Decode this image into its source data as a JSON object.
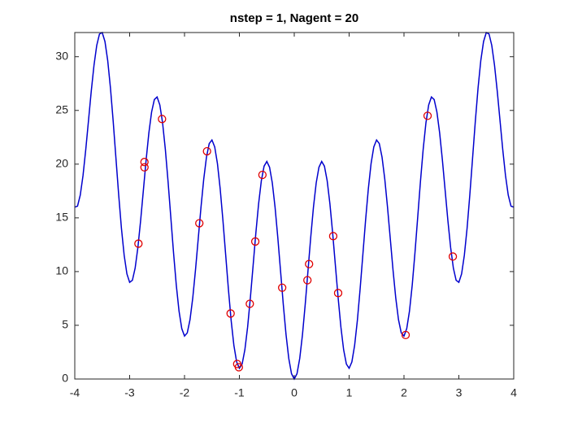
{
  "chart_data": {
    "type": "line",
    "title": "nstep = 1, Nagent = 20",
    "xlim": [
      -4,
      4
    ],
    "ylim": [
      0,
      32.25
    ],
    "xticks": [
      -4,
      -3,
      -2,
      -1,
      0,
      1,
      2,
      3,
      4
    ],
    "yticks": [
      0,
      5,
      10,
      15,
      20,
      25,
      30
    ],
    "series": [
      {
        "type": "line",
        "color": "#0000cd",
        "x": [
          -4,
          -3.95,
          -3.9,
          -3.85,
          -3.8,
          -3.75,
          -3.7,
          -3.65,
          -3.6,
          -3.55,
          -3.5,
          -3.45,
          -3.4,
          -3.35,
          -3.3,
          -3.25,
          -3.2,
          -3.15,
          -3.1,
          -3.05,
          -3,
          -2.95,
          -2.9,
          -2.85,
          -2.8,
          -2.75,
          -2.7,
          -2.65,
          -2.6,
          -2.55,
          -2.5,
          -2.45,
          -2.4,
          -2.35,
          -2.3,
          -2.25,
          -2.2,
          -2.15,
          -2.1,
          -2.05,
          -2,
          -1.95,
          -1.9,
          -1.85,
          -1.8,
          -1.75,
          -1.7,
          -1.65,
          -1.6,
          -1.55,
          -1.5,
          -1.45,
          -1.4,
          -1.35,
          -1.3,
          -1.25,
          -1.2,
          -1.15,
          -1.1,
          -1.05,
          -1,
          -0.95,
          -0.9,
          -0.85,
          -0.8,
          -0.75,
          -0.7,
          -0.65,
          -0.6,
          -0.55,
          -0.5,
          -0.45,
          -0.4,
          -0.35,
          -0.3,
          -0.25,
          -0.2,
          -0.15,
          -0.1,
          -0.05,
          0,
          0.05,
          0.1,
          0.15,
          0.2,
          0.25,
          0.3,
          0.35,
          0.4,
          0.45,
          0.5,
          0.55,
          0.6,
          0.65,
          0.7,
          0.75,
          0.8,
          0.85,
          0.9,
          0.95,
          1,
          1.05,
          1.1,
          1.15,
          1.2,
          1.25,
          1.3,
          1.35,
          1.4,
          1.45,
          1.5,
          1.55,
          1.6,
          1.65,
          1.7,
          1.75,
          1.8,
          1.85,
          1.9,
          1.95,
          2,
          2.05,
          2.1,
          2.15,
          2.2,
          2.25,
          2.3,
          2.35,
          2.4,
          2.45,
          2.5,
          2.55,
          2.6,
          2.65,
          2.7,
          2.75,
          2.8,
          2.85,
          2.9,
          2.95,
          3,
          3.05,
          3.1,
          3.15,
          3.2,
          3.25,
          3.3,
          3.35,
          3.4,
          3.45,
          3.5,
          3.55,
          3.6,
          3.65,
          3.7,
          3.75,
          3.8,
          3.85,
          3.9,
          3.95,
          4
        ],
        "values": [
          16,
          16.09,
          17.12,
          18.94,
          21.35,
          24.06,
          26.78,
          29.2,
          31.05,
          32.11,
          32.25,
          31.41,
          29.65,
          27.1,
          23.98,
          20.56,
          17.15,
          14.04,
          11.52,
          9.79,
          9,
          9.19,
          10.32,
          12.24,
          14.75,
          17.56,
          20.38,
          22.9,
          24.85,
          26.01,
          26.25,
          25.51,
          23.85,
          21.4,
          18.38,
          15.06,
          11.75,
          8.74,
          6.32,
          4.69,
          4,
          4.29,
          5.52,
          7.54,
          10.15,
          13.06,
          15.98,
          18.6,
          20.65,
          21.91,
          22.25,
          21.61,
          20.05,
          17.7,
          14.78,
          11.56,
          8.35,
          5.44,
          3.12,
          1.59,
          1,
          1.39,
          2.72,
          4.84,
          7.55,
          10.56,
          13.58,
          16.3,
          18.45,
          19.81,
          20.25,
          19.71,
          18.25,
          16,
          13.18,
          10.06,
          6.95,
          4.14,
          1.92,
          0.49,
          0,
          0.49,
          1.92,
          4.14,
          6.95,
          10.06,
          13.18,
          16,
          18.25,
          19.71,
          20.25,
          19.81,
          18.45,
          16.3,
          13.58,
          10.56,
          7.55,
          4.84,
          2.72,
          1.39,
          1,
          1.59,
          3.12,
          5.44,
          8.35,
          11.56,
          14.78,
          17.7,
          20.05,
          21.61,
          22.25,
          21.91,
          20.65,
          18.6,
          15.98,
          13.06,
          10.15,
          7.54,
          5.52,
          4.29,
          4,
          4.69,
          6.32,
          8.74,
          11.75,
          15.06,
          18.38,
          21.4,
          23.85,
          25.51,
          26.25,
          26.01,
          24.85,
          22.9,
          20.38,
          17.56,
          14.75,
          12.24,
          10.32,
          9.19,
          9,
          9.79,
          11.52,
          14.04,
          17.15,
          20.56,
          23.98,
          27.1,
          29.65,
          31.41,
          32.25,
          32.11,
          31.05,
          29.2,
          26.78,
          24.06,
          21.35,
          18.94,
          17.12,
          16.09,
          16
        ]
      },
      {
        "type": "scatter",
        "color": "#e00000",
        "x": [
          -2.84,
          -2.73,
          -2.73,
          -2.41,
          -1.73,
          -1.59,
          -1.16,
          -1.04,
          -1.01,
          -0.81,
          -0.71,
          -0.58,
          -0.22,
          0.24,
          0.27,
          0.71,
          0.8,
          2.03,
          2.43,
          2.89
        ],
        "values": [
          12.6,
          20.2,
          19.7,
          24.2,
          14.5,
          21.2,
          6.1,
          1.4,
          1.1,
          7,
          12.8,
          19,
          8.5,
          9.2,
          10.7,
          13.3,
          8,
          4.1,
          24.5,
          11.4
        ]
      }
    ]
  }
}
